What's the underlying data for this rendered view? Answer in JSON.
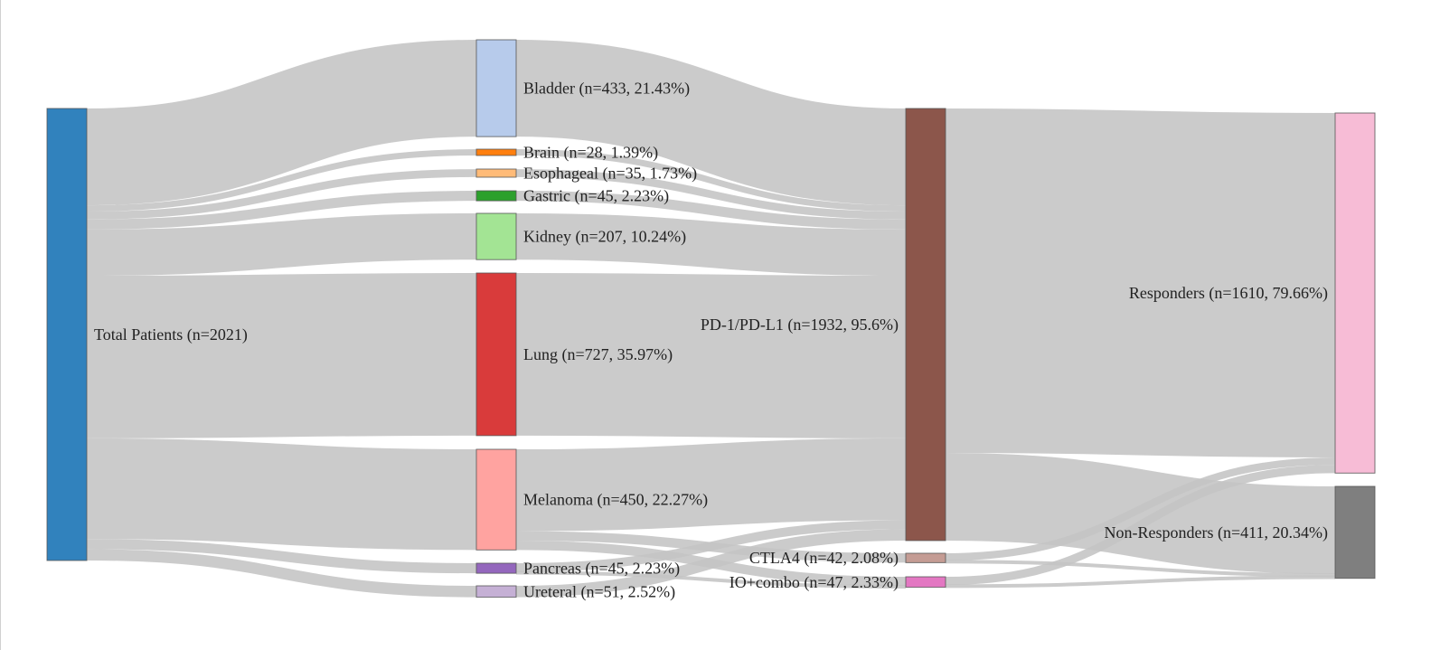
{
  "diagram": {
    "type": "sankey",
    "nodes": [
      {
        "id": "total",
        "column": 0,
        "value": 2021,
        "label": "Total Patients (n=2021)",
        "color": "#3182bd",
        "label_side": "right"
      },
      {
        "id": "bladder",
        "column": 1,
        "value": 433,
        "label": "Bladder (n=433, 21.43%)",
        "color": "#b7cbeb",
        "label_side": "right"
      },
      {
        "id": "brain",
        "column": 1,
        "value": 28,
        "label": "Brain (n=28, 1.39%)",
        "color": "#ff7f0e",
        "label_side": "right"
      },
      {
        "id": "esophageal",
        "column": 1,
        "value": 35,
        "label": "Esophageal (n=35, 1.73%)",
        "color": "#ffbb78",
        "label_side": "right"
      },
      {
        "id": "gastric",
        "column": 1,
        "value": 45,
        "label": "Gastric (n=45, 2.23%)",
        "color": "#2ca02c",
        "label_side": "right"
      },
      {
        "id": "kidney",
        "column": 1,
        "value": 207,
        "label": "Kidney (n=207, 10.24%)",
        "color": "#a3e494",
        "label_side": "right"
      },
      {
        "id": "lung",
        "column": 1,
        "value": 727,
        "label": "Lung (n=727, 35.97%)",
        "color": "#d93b3b",
        "label_side": "right"
      },
      {
        "id": "melanoma",
        "column": 1,
        "value": 450,
        "label": "Melanoma (n=450, 22.27%)",
        "color": "#ffa3a0",
        "label_side": "right"
      },
      {
        "id": "pancreas",
        "column": 1,
        "value": 45,
        "label": "Pancreas (n=45, 2.23%)",
        "color": "#9467bd",
        "label_side": "right"
      },
      {
        "id": "ureteral",
        "column": 1,
        "value": 51,
        "label": "Ureteral (n=51, 2.52%)",
        "color": "#c5b0d5",
        "label_side": "right"
      },
      {
        "id": "pd1",
        "column": 2,
        "value": 1932,
        "label": "PD-1/PD-L1 (n=1932, 95.6%)",
        "color": "#8c564b",
        "label_side": "left"
      },
      {
        "id": "ctla4",
        "column": 2,
        "value": 42,
        "label": "CTLA4 (n=42, 2.08%)",
        "color": "#c49c94",
        "label_side": "left"
      },
      {
        "id": "iocombo",
        "column": 2,
        "value": 47,
        "label": "IO+combo (n=47, 2.33%)",
        "color": "#e377c2",
        "label_side": "left"
      },
      {
        "id": "responders",
        "column": 3,
        "value": 1610,
        "label": "Responders (n=1610, 79.66%)",
        "color": "#f7bcd6",
        "label_side": "left"
      },
      {
        "id": "nonresponders",
        "column": 3,
        "value": 411,
        "label": "Non-Responders (n=411, 20.34%)",
        "color": "#7f7f7f",
        "label_side": "left"
      }
    ],
    "links": [
      {
        "source": "total",
        "target": "bladder",
        "value": 433
      },
      {
        "source": "total",
        "target": "brain",
        "value": 28
      },
      {
        "source": "total",
        "target": "esophageal",
        "value": 35
      },
      {
        "source": "total",
        "target": "gastric",
        "value": 45
      },
      {
        "source": "total",
        "target": "kidney",
        "value": 207
      },
      {
        "source": "total",
        "target": "lung",
        "value": 727
      },
      {
        "source": "total",
        "target": "melanoma",
        "value": 450
      },
      {
        "source": "total",
        "target": "pancreas",
        "value": 45
      },
      {
        "source": "total",
        "target": "ureteral",
        "value": 51
      },
      {
        "source": "bladder",
        "target": "pd1",
        "value": 433
      },
      {
        "source": "brain",
        "target": "pd1",
        "value": 28
      },
      {
        "source": "esophageal",
        "target": "pd1",
        "value": 35
      },
      {
        "source": "gastric",
        "target": "pd1",
        "value": 45
      },
      {
        "source": "kidney",
        "target": "pd1",
        "value": 207
      },
      {
        "source": "lung",
        "target": "pd1",
        "value": 727
      },
      {
        "source": "melanoma",
        "target": "pd1",
        "value": 366
      },
      {
        "source": "melanoma",
        "target": "ctla4",
        "value": 42
      },
      {
        "source": "melanoma",
        "target": "iocombo",
        "value": 42
      },
      {
        "source": "pancreas",
        "target": "pd1",
        "value": 40
      },
      {
        "source": "pancreas",
        "target": "iocombo",
        "value": 5
      },
      {
        "source": "ureteral",
        "target": "pd1",
        "value": 51
      },
      {
        "source": "pd1",
        "target": "responders",
        "value": 1540
      },
      {
        "source": "pd1",
        "target": "nonresponders",
        "value": 392
      },
      {
        "source": "ctla4",
        "target": "responders",
        "value": 33
      },
      {
        "source": "ctla4",
        "target": "nonresponders",
        "value": 9
      },
      {
        "source": "iocombo",
        "target": "responders",
        "value": 37
      },
      {
        "source": "iocombo",
        "target": "nonresponders",
        "value": 10
      }
    ]
  }
}
